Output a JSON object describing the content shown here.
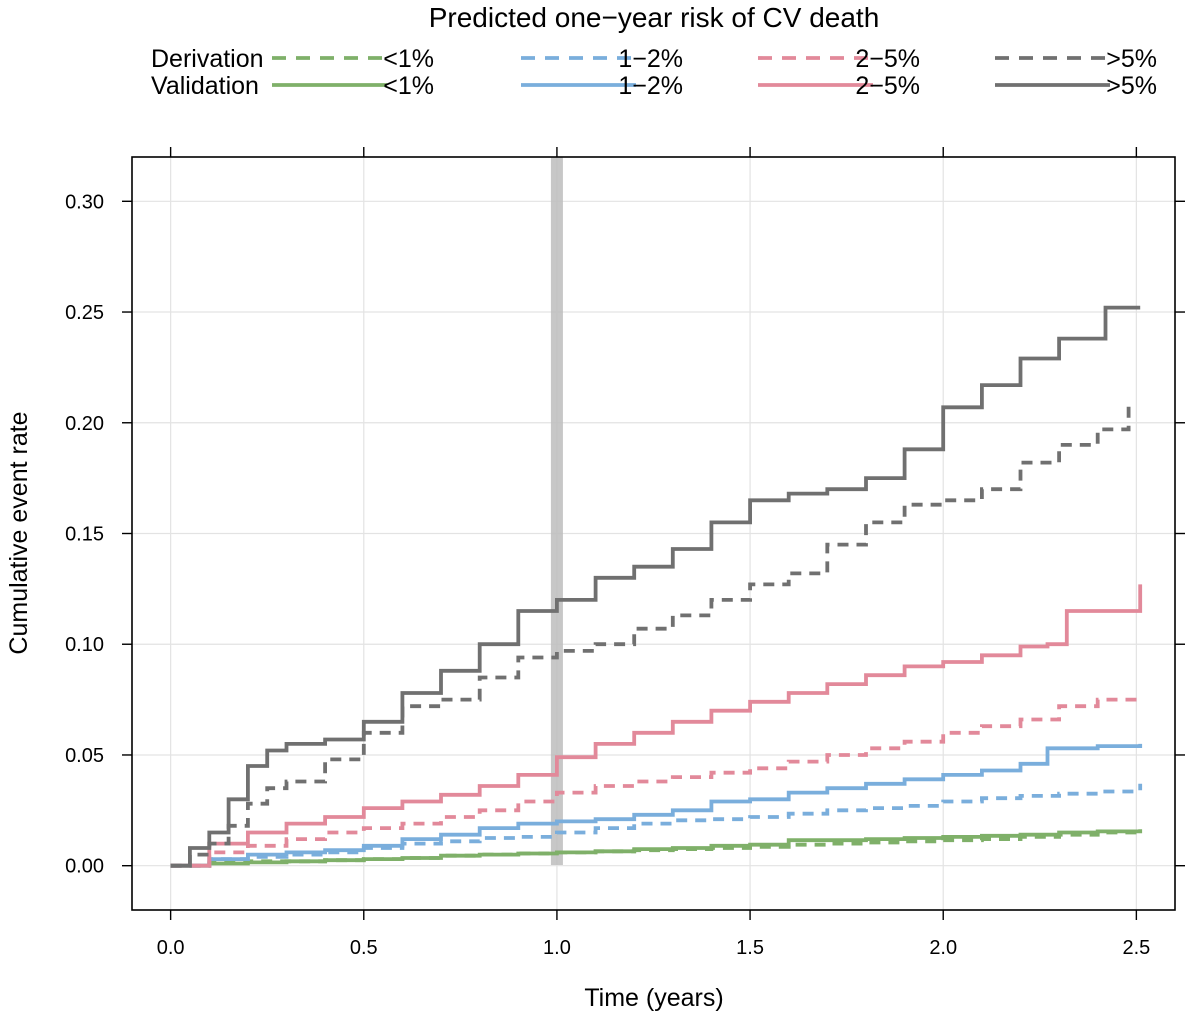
{
  "chart_data": {
    "type": "line",
    "title": "",
    "legend": {
      "title": "Predicted one−year risk of CV death",
      "row_labels": [
        "Derivation",
        "Validation"
      ],
      "groups": [
        "<1%",
        "1−2%",
        "2−5%",
        ">5%"
      ],
      "placement": "top"
    },
    "xlabel": "Time (years)",
    "ylabel": "Cumulative event rate",
    "xlim": [
      -0.1,
      2.6
    ],
    "ylim": [
      -0.02,
      0.32
    ],
    "xticks": [
      0.0,
      0.5,
      1.0,
      1.5,
      2.0,
      2.5
    ],
    "xtick_labels": [
      "0.0",
      "0.5",
      "1.0",
      "1.5",
      "2.0",
      "2.5"
    ],
    "yticks": [
      0.0,
      0.05,
      0.1,
      0.15,
      0.2,
      0.25,
      0.3
    ],
    "ytick_labels": [
      "0.00",
      "0.05",
      "0.10",
      "0.15",
      "0.20",
      "0.25",
      "0.30"
    ],
    "grid": true,
    "highlight_band": {
      "x": 1.0
    },
    "colors": {
      "<1%": "#7fb069",
      "1−2%": "#7aaedc",
      "2−5%": "#e2899a",
      ">5%": "#707070",
      "band": "#bdbdbd"
    },
    "series": [
      {
        "cohort": "Derivation",
        "group": "<1%",
        "style": "dashed",
        "x": [
          0,
          0.1,
          0.2,
          0.3,
          0.4,
          0.5,
          0.6,
          0.7,
          0.8,
          0.9,
          1.0,
          1.1,
          1.2,
          1.3,
          1.4,
          1.5,
          1.6,
          1.7,
          1.8,
          1.9,
          2.0,
          2.1,
          2.2,
          2.3,
          2.4,
          2.51
        ],
        "y": [
          0,
          0.0015,
          0.002,
          0.002,
          0.0025,
          0.003,
          0.0035,
          0.0045,
          0.005,
          0.0055,
          0.006,
          0.0065,
          0.007,
          0.0075,
          0.008,
          0.0085,
          0.0095,
          0.01,
          0.0105,
          0.011,
          0.0115,
          0.012,
          0.013,
          0.014,
          0.015,
          0.016
        ]
      },
      {
        "cohort": "Validation",
        "group": "<1%",
        "style": "solid",
        "x": [
          0,
          0.1,
          0.2,
          0.3,
          0.4,
          0.5,
          0.6,
          0.7,
          0.8,
          0.9,
          1.0,
          1.1,
          1.2,
          1.3,
          1.4,
          1.5,
          1.6,
          1.7,
          1.8,
          1.9,
          2.0,
          2.1,
          2.2,
          2.3,
          2.4,
          2.51
        ],
        "y": [
          0,
          0.001,
          0.0015,
          0.002,
          0.0025,
          0.003,
          0.0035,
          0.0045,
          0.005,
          0.0055,
          0.006,
          0.0065,
          0.0075,
          0.008,
          0.009,
          0.0095,
          0.0115,
          0.0115,
          0.012,
          0.0125,
          0.013,
          0.0135,
          0.014,
          0.015,
          0.0155,
          0.0165
        ]
      },
      {
        "cohort": "Derivation",
        "group": "1−2%",
        "style": "dashed",
        "x": [
          0,
          0.1,
          0.2,
          0.3,
          0.4,
          0.5,
          0.6,
          0.7,
          0.8,
          0.9,
          1.0,
          1.1,
          1.2,
          1.3,
          1.4,
          1.5,
          1.6,
          1.7,
          1.8,
          1.9,
          2.0,
          2.1,
          2.2,
          2.3,
          2.4,
          2.51
        ],
        "y": [
          0,
          0.003,
          0.004,
          0.005,
          0.006,
          0.008,
          0.01,
          0.011,
          0.0125,
          0.013,
          0.015,
          0.017,
          0.019,
          0.0205,
          0.021,
          0.022,
          0.0235,
          0.025,
          0.026,
          0.027,
          0.029,
          0.0305,
          0.0315,
          0.0325,
          0.0335,
          0.037
        ]
      },
      {
        "cohort": "Validation",
        "group": "1−2%",
        "style": "solid",
        "x": [
          0,
          0.1,
          0.2,
          0.3,
          0.4,
          0.5,
          0.6,
          0.7,
          0.8,
          0.9,
          1.0,
          1.1,
          1.2,
          1.3,
          1.4,
          1.5,
          1.6,
          1.7,
          1.8,
          1.9,
          2.0,
          2.1,
          2.2,
          2.27,
          2.4,
          2.51
        ],
        "y": [
          0,
          0.003,
          0.005,
          0.006,
          0.007,
          0.009,
          0.012,
          0.014,
          0.017,
          0.019,
          0.02,
          0.021,
          0.023,
          0.025,
          0.029,
          0.03,
          0.033,
          0.035,
          0.037,
          0.039,
          0.041,
          0.043,
          0.046,
          0.053,
          0.054,
          0.055
        ]
      },
      {
        "cohort": "Derivation",
        "group": "2−5%",
        "style": "dashed",
        "x": [
          0,
          0.1,
          0.2,
          0.3,
          0.4,
          0.5,
          0.6,
          0.7,
          0.8,
          0.9,
          1.0,
          1.1,
          1.2,
          1.3,
          1.4,
          1.5,
          1.6,
          1.7,
          1.8,
          1.9,
          2.0,
          2.1,
          2.2,
          2.3,
          2.4,
          2.51
        ],
        "y": [
          0,
          0.006,
          0.009,
          0.012,
          0.015,
          0.017,
          0.019,
          0.022,
          0.025,
          0.029,
          0.033,
          0.036,
          0.038,
          0.04,
          0.042,
          0.044,
          0.047,
          0.05,
          0.053,
          0.056,
          0.06,
          0.063,
          0.066,
          0.072,
          0.075,
          0.076
        ]
      },
      {
        "cohort": "Validation",
        "group": "2−5%",
        "style": "solid",
        "x": [
          0,
          0.1,
          0.2,
          0.3,
          0.4,
          0.5,
          0.6,
          0.7,
          0.8,
          0.9,
          1.0,
          1.1,
          1.2,
          1.3,
          1.4,
          1.5,
          1.6,
          1.7,
          1.8,
          1.9,
          2.0,
          2.1,
          2.2,
          2.27,
          2.32,
          2.51
        ],
        "y": [
          0,
          0.01,
          0.015,
          0.019,
          0.022,
          0.026,
          0.029,
          0.032,
          0.036,
          0.041,
          0.049,
          0.055,
          0.06,
          0.065,
          0.07,
          0.074,
          0.078,
          0.082,
          0.086,
          0.09,
          0.092,
          0.095,
          0.099,
          0.1,
          0.115,
          0.127
        ]
      },
      {
        "cohort": "Derivation",
        "group": ">5%",
        "style": "dashed",
        "x": [
          0,
          0.05,
          0.1,
          0.15,
          0.2,
          0.25,
          0.3,
          0.4,
          0.5,
          0.6,
          0.7,
          0.8,
          0.9,
          1.0,
          1.1,
          1.2,
          1.3,
          1.4,
          1.5,
          1.6,
          1.7,
          1.8,
          1.9,
          2.0,
          2.1,
          2.2,
          2.3,
          2.4,
          2.48
        ],
        "y": [
          0,
          0.005,
          0.01,
          0.018,
          0.028,
          0.035,
          0.038,
          0.048,
          0.06,
          0.072,
          0.075,
          0.085,
          0.094,
          0.097,
          0.1,
          0.107,
          0.113,
          0.12,
          0.127,
          0.132,
          0.145,
          0.155,
          0.163,
          0.165,
          0.17,
          0.182,
          0.19,
          0.197,
          0.21
        ]
      },
      {
        "cohort": "Validation",
        "group": ">5%",
        "style": "solid",
        "x": [
          0,
          0.05,
          0.1,
          0.15,
          0.2,
          0.25,
          0.3,
          0.4,
          0.5,
          0.6,
          0.7,
          0.8,
          0.9,
          1.0,
          1.1,
          1.2,
          1.3,
          1.4,
          1.5,
          1.6,
          1.7,
          1.8,
          1.9,
          2.0,
          2.1,
          2.2,
          2.3,
          2.4,
          2.42,
          2.51
        ],
        "y": [
          0,
          0.008,
          0.015,
          0.03,
          0.045,
          0.052,
          0.055,
          0.057,
          0.065,
          0.078,
          0.088,
          0.1,
          0.115,
          0.12,
          0.13,
          0.135,
          0.143,
          0.155,
          0.165,
          0.168,
          0.17,
          0.175,
          0.188,
          0.207,
          0.217,
          0.229,
          0.238,
          0.238,
          0.252,
          0.252
        ]
      }
    ]
  }
}
